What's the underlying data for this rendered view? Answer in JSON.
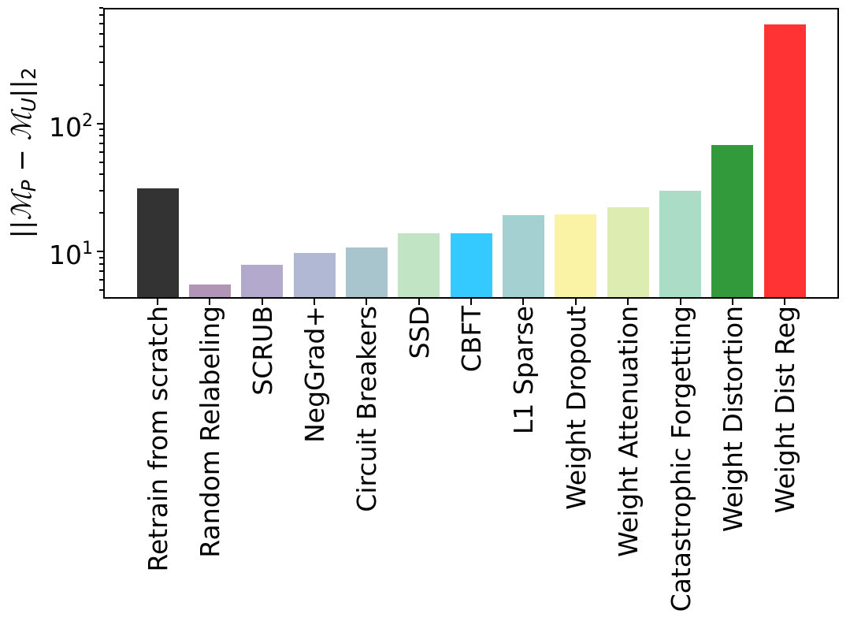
{
  "figure": {
    "background": "#ffffff",
    "axis_color": "#000000",
    "text_color": "#000000"
  },
  "chart_data": {
    "type": "bar",
    "title": "",
    "xlabel": "",
    "ylabel": "||M_P - M_U||_2",
    "ylabel_parts": [
      {
        "t": "||",
        "style": "plain"
      },
      {
        "t": "ℳ",
        "style": "script"
      },
      {
        "t": "P",
        "style": "sub-italic"
      },
      {
        "t": " − ",
        "style": "plain"
      },
      {
        "t": "ℳ",
        "style": "script"
      },
      {
        "t": "U",
        "style": "sub-italic"
      },
      {
        "t": "||",
        "style": "plain"
      },
      {
        "t": "2",
        "style": "sub"
      }
    ],
    "yscale": "log",
    "ylim": [
      4.4,
      800
    ],
    "grid": false,
    "legend": null,
    "y_ticks": [
      {
        "value": 10,
        "base": "10",
        "exp": "1"
      },
      {
        "value": 100,
        "base": "10",
        "exp": "2"
      }
    ],
    "y_minor_ticks": [
      5,
      6,
      7,
      8,
      9,
      20,
      30,
      40,
      50,
      60,
      70,
      80,
      90,
      200,
      300,
      400,
      500,
      600,
      700,
      800
    ],
    "categories": [
      "Retrain from scratch",
      "Random Relabeling",
      "SCRUB",
      "NegGrad+",
      "Circuit Breakers",
      "SSD",
      "CBFT",
      "L1 Sparse",
      "Weight Dropout",
      "Weight Attenuation",
      "Catastrophic Forgetting",
      "Weight Distortion",
      "Weight Dist Reg"
    ],
    "values": [
      31,
      5.5,
      7.9,
      9.8,
      10.7,
      13.8,
      13.9,
      19.3,
      19.6,
      22,
      30,
      68,
      590
    ],
    "bars": [
      {
        "label": "Retrain from scratch",
        "value": 31,
        "color": "#333333"
      },
      {
        "label": "Random Relabeling",
        "value": 5.5,
        "color": "#b294b8"
      },
      {
        "label": "SCRUB",
        "value": 7.9,
        "color": "#b3a9cd"
      },
      {
        "label": "NegGrad+",
        "value": 9.8,
        "color": "#b0b8d4"
      },
      {
        "label": "Circuit Breakers",
        "value": 10.7,
        "color": "#a8c5ce"
      },
      {
        "label": "SSD",
        "value": 13.8,
        "color": "#c1e5c4"
      },
      {
        "label": "CBFT",
        "value": 13.9,
        "color": "#34caff"
      },
      {
        "label": "L1 Sparse",
        "value": 19.3,
        "color": "#a5d0d2"
      },
      {
        "label": "Weight Dropout",
        "value": 19.6,
        "color": "#faf2a4"
      },
      {
        "label": "Weight Attenuation",
        "value": 22,
        "color": "#ddedb2"
      },
      {
        "label": "Catastrophic Forgetting",
        "value": 30,
        "color": "#abdcc5"
      },
      {
        "label": "Weight Distortion",
        "value": 68,
        "color": "#329a3a"
      },
      {
        "label": "Weight Dist Reg",
        "value": 590,
        "color": "#ff3333"
      }
    ]
  }
}
